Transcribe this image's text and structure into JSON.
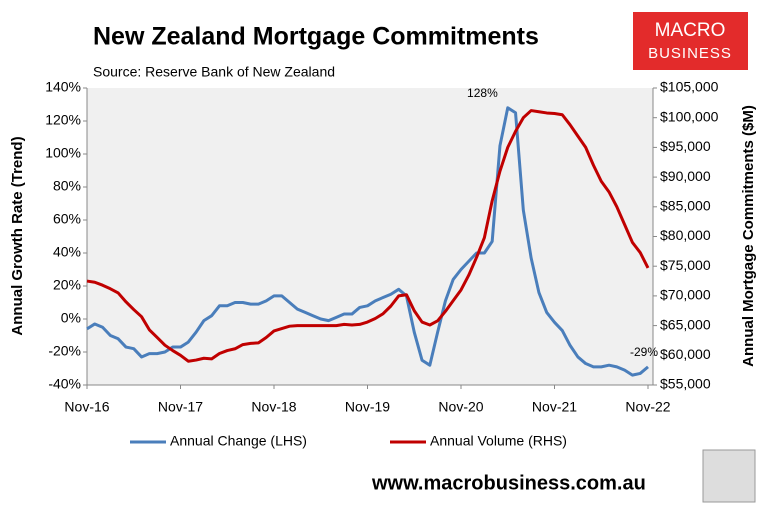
{
  "chart_data": {
    "type": "line",
    "title": "New Zealand Mortgage Commitments",
    "subtitle": "Source: Reserve Bank of New Zealand",
    "y_label": "Annual Growth Rate (Trend)",
    "y2_label": "Annual Mortgage Commitments ($M)",
    "categories": [
      "Nov-16",
      null,
      null,
      null,
      null,
      null,
      null,
      null,
      null,
      null,
      null,
      null,
      "Nov-17",
      null,
      null,
      null,
      null,
      null,
      null,
      null,
      null,
      null,
      null,
      null,
      "Nov-18",
      null,
      null,
      null,
      null,
      null,
      null,
      null,
      null,
      null,
      null,
      null,
      "Nov-19",
      null,
      null,
      null,
      null,
      null,
      null,
      null,
      null,
      null,
      null,
      null,
      "Nov-20",
      null,
      null,
      null,
      null,
      null,
      null,
      null,
      null,
      null,
      null,
      null,
      "Nov-21",
      null,
      null,
      null,
      null,
      null,
      null,
      null,
      null,
      null,
      null,
      null,
      "Nov-22"
    ],
    "series": [
      {
        "name": "Annual Change (LHS)",
        "color": "#4a7ebb",
        "axis": "y",
        "values": [
          -6,
          -3,
          -5,
          -10,
          -12,
          -17,
          -18,
          -23,
          -21,
          -21,
          -20,
          -17,
          -17,
          -14,
          -8,
          -1,
          2,
          8,
          8,
          10,
          10,
          9,
          9,
          11,
          14,
          14,
          10,
          6,
          4,
          2,
          0,
          -1,
          1,
          3,
          3,
          7,
          8,
          11,
          13,
          15,
          18,
          14,
          -8,
          -25,
          -28,
          -8,
          11,
          24,
          30,
          35,
          40,
          40,
          47,
          105,
          128,
          125,
          66,
          37,
          16,
          4,
          -2,
          -7,
          -16,
          -23,
          -27,
          -29,
          -29,
          -28,
          -29,
          -31,
          -34,
          -33,
          -29
        ],
        "value_labels": [
          null,
          null,
          null,
          null,
          null,
          null,
          null,
          null,
          null,
          null,
          null,
          null,
          null,
          null,
          null,
          null,
          null,
          null,
          null,
          null,
          null,
          null,
          null,
          null,
          null,
          null,
          null,
          null,
          null,
          null,
          null,
          null,
          null,
          null,
          null,
          null,
          null,
          null,
          null,
          null,
          null,
          null,
          null,
          null,
          null,
          null,
          null,
          null,
          null,
          null,
          null,
          null,
          null,
          null,
          "128%",
          null,
          null,
          null,
          null,
          null,
          null,
          null,
          null,
          null,
          null,
          null,
          null,
          null,
          null,
          null,
          null,
          null,
          "-29%"
        ]
      },
      {
        "name": "Annual Volume (RHS)",
        "color": "#c00000",
        "axis": "y2",
        "values": [
          72500,
          72300,
          71800,
          71200,
          70500,
          69000,
          67700,
          66500,
          64300,
          63000,
          61700,
          60800,
          60000,
          59000,
          59200,
          59500,
          59400,
          60300,
          60800,
          61100,
          61800,
          62000,
          62100,
          63000,
          64100,
          64500,
          64900,
          65000,
          65000,
          65000,
          65000,
          65000,
          65000,
          65200,
          65100,
          65200,
          65600,
          66200,
          67000,
          68300,
          70000,
          70200,
          67500,
          65600,
          65100,
          65800,
          67400,
          69200,
          71000,
          73500,
          76500,
          79800,
          86000,
          91000,
          95000,
          97700,
          100000,
          101200,
          101000,
          100800,
          100700,
          100500,
          98800,
          96900,
          95000,
          92000,
          89300,
          87500,
          85000,
          82000,
          79000,
          77300,
          74700
        ]
      }
    ],
    "ylim": [
      -40,
      140
    ],
    "yticks": [
      {
        "value": -40,
        "label": "-40%"
      },
      {
        "value": -20,
        "label": "-20%"
      },
      {
        "value": 0,
        "label": "0%"
      },
      {
        "value": 20,
        "label": "20%"
      },
      {
        "value": 40,
        "label": "40%"
      },
      {
        "value": 60,
        "label": "60%"
      },
      {
        "value": 80,
        "label": "80%"
      },
      {
        "value": 100,
        "label": "100%"
      },
      {
        "value": 120,
        "label": "120%"
      },
      {
        "value": 140,
        "label": "140%"
      }
    ],
    "y2lim": [
      55000,
      105000
    ],
    "y2ticks": [
      {
        "value": 55000,
        "label": "$55,000"
      },
      {
        "value": 60000,
        "label": "$60,000"
      },
      {
        "value": 65000,
        "label": "$65,000"
      },
      {
        "value": 70000,
        "label": "$70,000"
      },
      {
        "value": 75000,
        "label": "$75,000"
      },
      {
        "value": 80000,
        "label": "$80,000"
      },
      {
        "value": 85000,
        "label": "$85,000"
      },
      {
        "value": 90000,
        "label": "$90,000"
      },
      {
        "value": 95000,
        "label": "$95,000"
      },
      {
        "value": 100000,
        "label": "$100,000"
      },
      {
        "value": 105000,
        "label": "$105,000"
      }
    ],
    "grid": false,
    "legend": "bottom"
  },
  "logo": [
    "MACRO",
    "BUSINESS"
  ],
  "footer": "www.macrobusiness.com.au"
}
